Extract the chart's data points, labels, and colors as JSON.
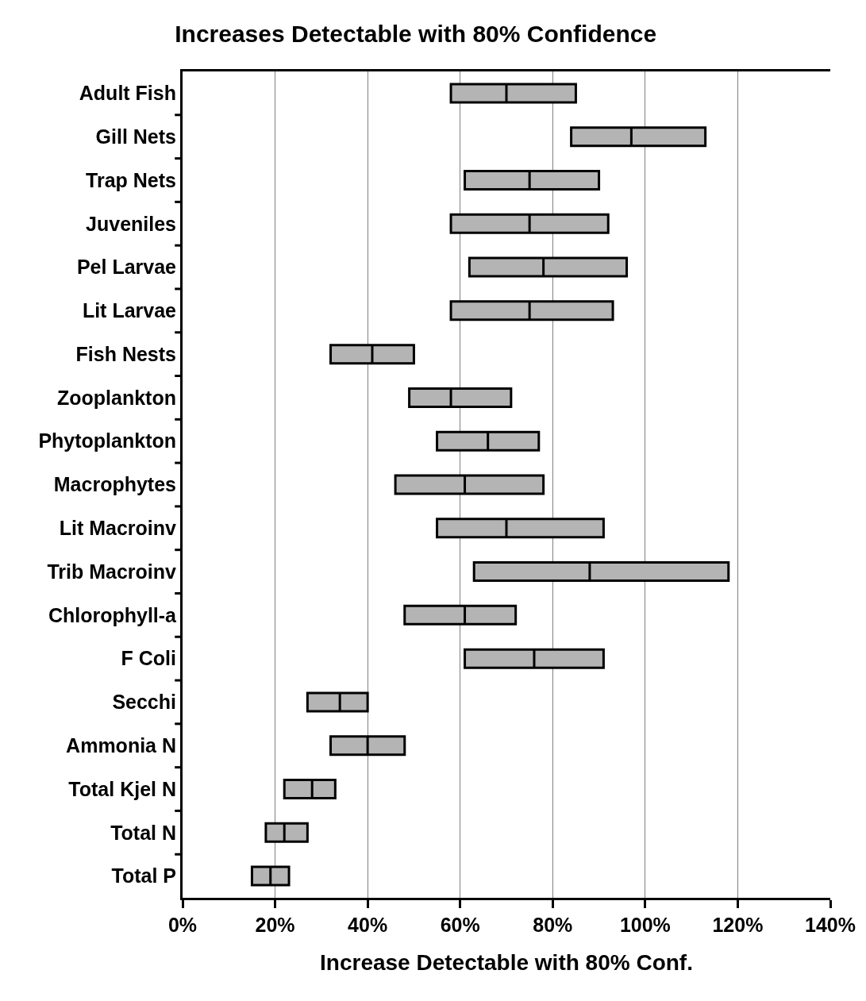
{
  "chart_data": {
    "type": "box",
    "orientation": "horizontal",
    "title": "Increases Detectable with 80% Confidence",
    "xlabel": "Increase Detectable with 80% Conf.",
    "categories": [
      "Adult Fish",
      "Gill Nets",
      "Trap Nets",
      "Juveniles",
      "Pel Larvae",
      "Lit Larvae",
      "Fish Nests",
      "Zooplankton",
      "Phytoplankton",
      "Macrophytes",
      "Lit Macroinv",
      "Trib Macroinv",
      "Chlorophyll-a",
      "F Coli",
      "Secchi",
      "Ammonia N",
      "Total Kjel N",
      "Total N",
      "Total P"
    ],
    "series": [
      {
        "color": "#b4b4b4",
        "boxes": [
          {
            "low": 58,
            "q1": 58,
            "median": 70,
            "q3": 85,
            "high": 85
          },
          {
            "low": 84,
            "q1": 84,
            "median": 97,
            "q3": 113,
            "high": 113
          },
          {
            "low": 61,
            "q1": 61,
            "median": 75,
            "q3": 90,
            "high": 90
          },
          {
            "low": 58,
            "q1": 58,
            "median": 75,
            "q3": 92,
            "high": 92
          },
          {
            "low": 62,
            "q1": 62,
            "median": 78,
            "q3": 96,
            "high": 96
          },
          {
            "low": 58,
            "q1": 58,
            "median": 75,
            "q3": 93,
            "high": 93
          },
          {
            "low": 32,
            "q1": 32,
            "median": 41,
            "q3": 50,
            "high": 50
          },
          {
            "low": 49,
            "q1": 49,
            "median": 58,
            "q3": 71,
            "high": 71
          },
          {
            "low": 55,
            "q1": 55,
            "median": 66,
            "q3": 77,
            "high": 77
          },
          {
            "low": 46,
            "q1": 46,
            "median": 61,
            "q3": 78,
            "high": 78
          },
          {
            "low": 55,
            "q1": 55,
            "median": 70,
            "q3": 91,
            "high": 91
          },
          {
            "low": 63,
            "q1": 63,
            "median": 88,
            "q3": 118,
            "high": 118
          },
          {
            "low": 48,
            "q1": 48,
            "median": 61,
            "q3": 72,
            "high": 72
          },
          {
            "low": 61,
            "q1": 61,
            "median": 76,
            "q3": 91,
            "high": 91
          },
          {
            "low": 27,
            "q1": 27,
            "median": 34,
            "q3": 40,
            "high": 40
          },
          {
            "low": 32,
            "q1": 32,
            "median": 40,
            "q3": 48,
            "high": 48
          },
          {
            "low": 22,
            "q1": 22,
            "median": 28,
            "q3": 33,
            "high": 33
          },
          {
            "low": 18,
            "q1": 18,
            "median": 22,
            "q3": 27,
            "high": 27
          },
          {
            "low": 15,
            "q1": 15,
            "median": 19,
            "q3": 23,
            "high": 23
          }
        ]
      }
    ],
    "xlim": [
      0,
      140
    ],
    "xticks": [
      {
        "value": 0,
        "label": "0%"
      },
      {
        "value": 20,
        "label": "20%"
      },
      {
        "value": 40,
        "label": "40%"
      },
      {
        "value": 60,
        "label": "60%"
      },
      {
        "value": 80,
        "label": "80%"
      },
      {
        "value": 100,
        "label": "100%"
      },
      {
        "value": 120,
        "label": "120%"
      },
      {
        "value": 140,
        "label": "140%"
      }
    ],
    "grid": "x"
  }
}
